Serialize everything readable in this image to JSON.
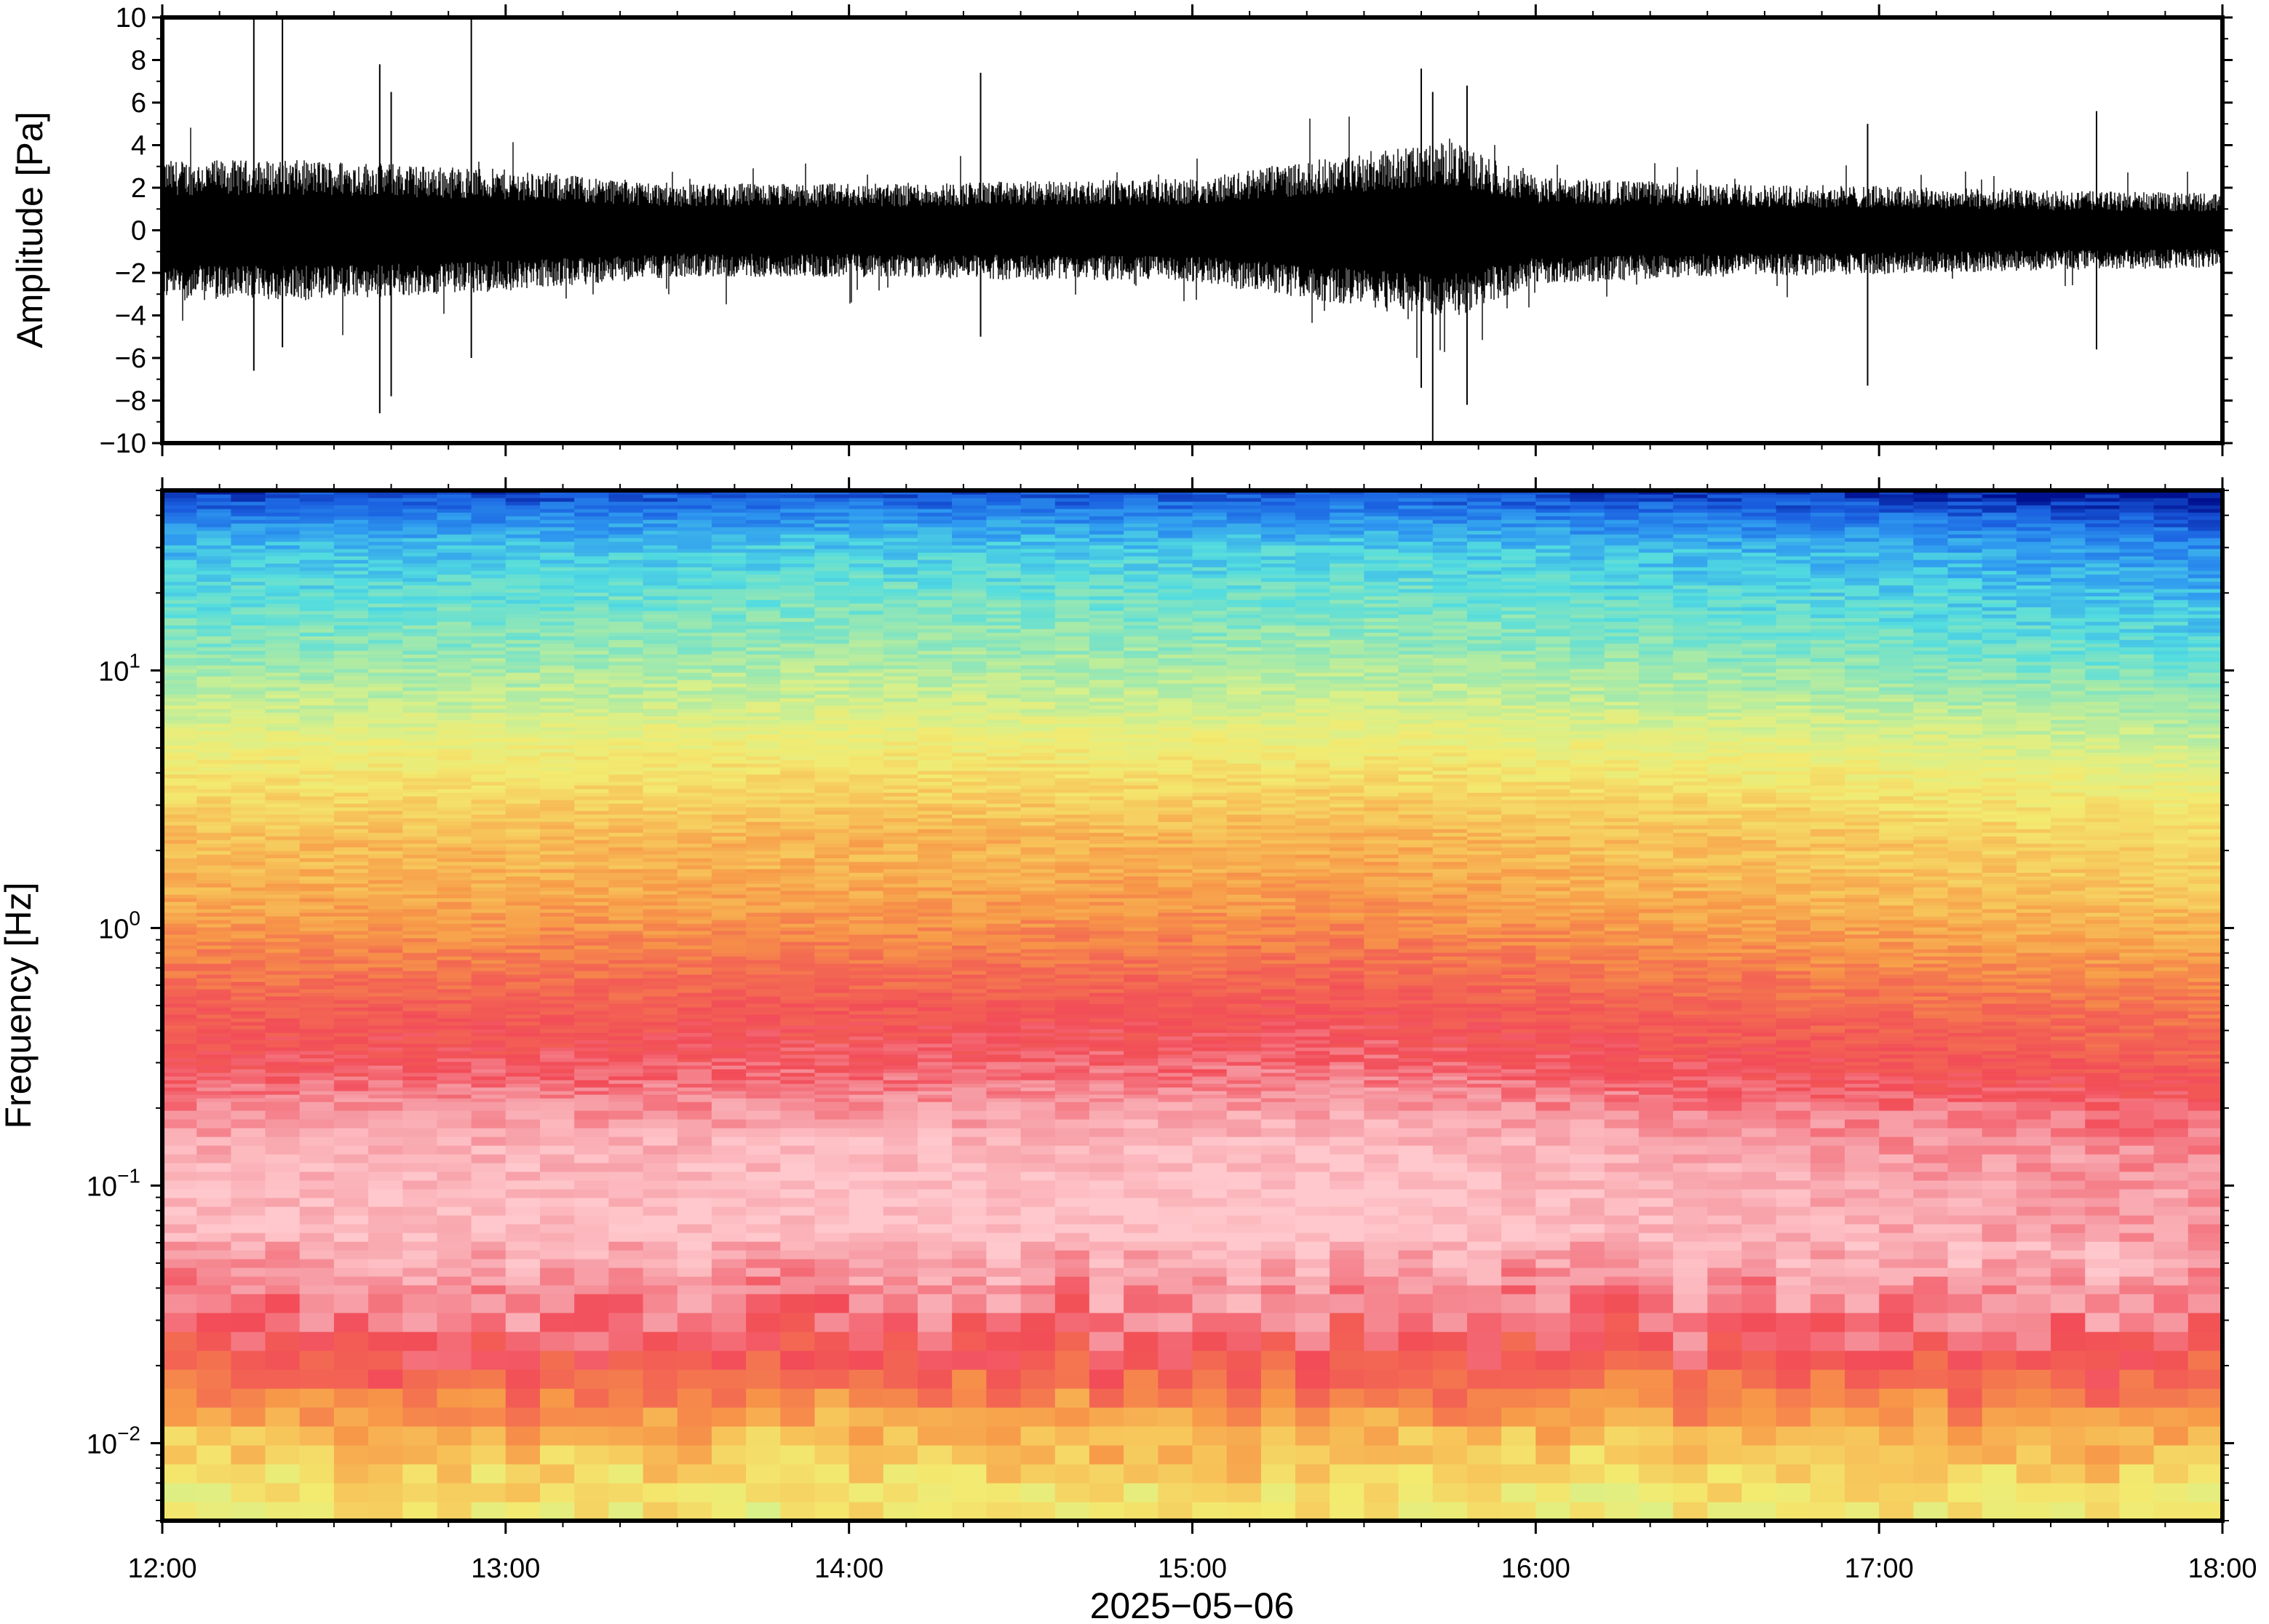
{
  "chart_data": [
    {
      "type": "line",
      "panel": "waveform",
      "title": "",
      "ylabel": "Amplitude [Pa]",
      "xlabel": "",
      "x_range": [
        "12:00",
        "18:00"
      ],
      "ylim": [
        -10,
        10
      ],
      "y_ticks": [
        -10,
        -8,
        -6,
        -4,
        -2,
        0,
        2,
        4,
        6,
        8,
        10
      ],
      "y_tick_labels": [
        "−10",
        "−8",
        "−6",
        "−4",
        "−2",
        "0",
        "2",
        "4",
        "6",
        "8",
        "10"
      ],
      "grid": false,
      "color": "#000000",
      "envelope": {
        "times": [
          "12:00",
          "12:30",
          "13:00",
          "13:30",
          "14:00",
          "14:30",
          "15:00",
          "15:15",
          "15:30",
          "15:45",
          "16:00",
          "16:30",
          "17:00",
          "17:30",
          "18:00"
        ],
        "typical_abs_amplitude": [
          3.0,
          3.0,
          2.6,
          2.0,
          2.0,
          2.1,
          2.2,
          2.8,
          3.3,
          3.8,
          2.3,
          2.0,
          1.9,
          1.7,
          1.6
        ]
      },
      "spikes": [
        {
          "time": "12:16",
          "min": -6.6,
          "max": 10
        },
        {
          "time": "12:21",
          "min": -5.5,
          "max": 10
        },
        {
          "time": "12:38",
          "min": -8.6,
          "max": 7.8
        },
        {
          "time": "12:40",
          "min": -7.8,
          "max": 6.5
        },
        {
          "time": "12:54",
          "min": -6.0,
          "max": 10
        },
        {
          "time": "14:23",
          "min": -5.0,
          "max": 7.4
        },
        {
          "time": "15:40",
          "min": -7.4,
          "max": 7.6
        },
        {
          "time": "15:42",
          "min": -10,
          "max": 6.5
        },
        {
          "time": "15:48",
          "min": -8.2,
          "max": 6.8
        },
        {
          "time": "16:58",
          "min": -7.3,
          "max": 5.0
        },
        {
          "time": "17:38",
          "min": -5.6,
          "max": 5.6
        }
      ]
    },
    {
      "type": "heatmap",
      "panel": "spectrogram",
      "title": "",
      "ylabel": "Frequency [Hz]",
      "xlabel": "2025−05−06",
      "x_ticks": [
        "12:00",
        "13:00",
        "14:00",
        "15:00",
        "16:00",
        "17:00",
        "18:00"
      ],
      "y_scale": "log",
      "ylim": [
        0.005,
        50
      ],
      "y_ticks": [
        0.01,
        0.1,
        1,
        10
      ],
      "y_tick_labels": [
        {
          "base": "10",
          "exp": "−2"
        },
        {
          "base": "10",
          "exp": "−1"
        },
        {
          "base": "10",
          "exp": "0"
        },
        {
          "base": "10",
          "exp": "1"
        }
      ],
      "colormap": {
        "name": "rainbow-with-pink-peak",
        "stops": [
          "#00108f",
          "#1a5fe0",
          "#2f9af0",
          "#52dce0",
          "#9be8b0",
          "#d8f08a",
          "#f3ea70",
          "#f7c55a",
          "#f79848",
          "#f36a52",
          "#f24c58",
          "#f69aa3",
          "#ffc8cc"
        ]
      },
      "frequency_profile": {
        "frequencies_hz": [
          0.005,
          0.007,
          0.01,
          0.014,
          0.02,
          0.03,
          0.05,
          0.07,
          0.1,
          0.15,
          0.2,
          0.3,
          0.5,
          0.8,
          1.2,
          2,
          3,
          5,
          8,
          12,
          20,
          30,
          40,
          50
        ],
        "level_index": [
          6.0,
          6.4,
          7.2,
          8.2,
          9.5,
          10.5,
          11.3,
          11.7,
          11.6,
          11.3,
          10.8,
          10.0,
          9.3,
          8.4,
          7.7,
          7.1,
          6.4,
          5.4,
          4.3,
          3.6,
          2.9,
          2.3,
          1.3,
          0.3
        ]
      },
      "time_modulation": {
        "times": [
          "12:00",
          "13:00",
          "14:00",
          "15:00",
          "15:30",
          "16:00",
          "17:00",
          "18:00"
        ],
        "high_freq_offset": [
          0.2,
          0.3,
          0.5,
          0.4,
          0.5,
          0.3,
          0.0,
          -0.5
        ],
        "mid_freq_offset": [
          0.0,
          0.1,
          0.2,
          0.3,
          0.4,
          0.1,
          -0.3,
          -0.6
        ]
      }
    }
  ]
}
